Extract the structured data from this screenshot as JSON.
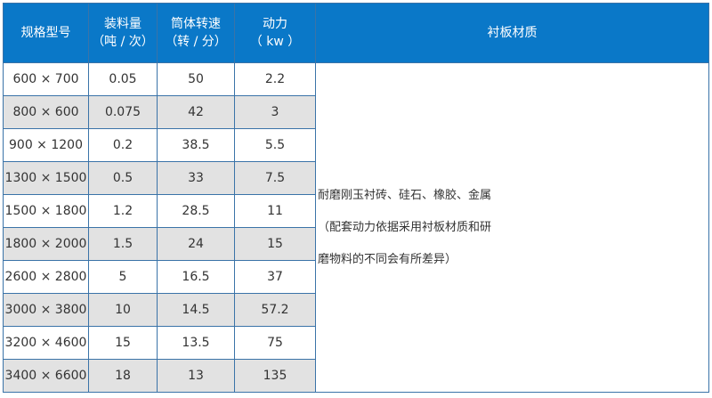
{
  "header": [
    "规格型号",
    "装料量\n（吨 / 次）",
    "筒体转速\n（转 / 分）",
    "动力\n（ kw ）",
    "衬板材质"
  ],
  "rows": [
    [
      "600 × 700",
      "0.05",
      "50",
      "2.2"
    ],
    [
      "800 × 600",
      "0.075",
      "42",
      "3"
    ],
    [
      "900 × 1200",
      "0.2",
      "38.5",
      "5.5"
    ],
    [
      "1300 × 1500",
      "0.5",
      "33",
      "7.5"
    ],
    [
      "1500 × 1800",
      "1.2",
      "28.5",
      "11"
    ],
    [
      "1800 × 2000",
      "1.5",
      "24",
      "15"
    ],
    [
      "2600 × 2800",
      "5",
      "16.5",
      "37"
    ],
    [
      "3000 × 3800",
      "10",
      "14.5",
      "57.2"
    ],
    [
      "3200 × 4600",
      "15",
      "13.5",
      "75"
    ],
    [
      "3400 × 6600",
      "18",
      "13",
      "135"
    ]
  ],
  "note_lines": [
    "耐磨刚玉衬砖、硅石、橡胶、金属",
    "（配套动力依据采用衬板材质和研",
    "磨物料的不同会有所差异）"
  ],
  "colors": {
    "header": "#0a78c8",
    "alt_row": "#e2e2e2",
    "border": "#3a73a8"
  }
}
